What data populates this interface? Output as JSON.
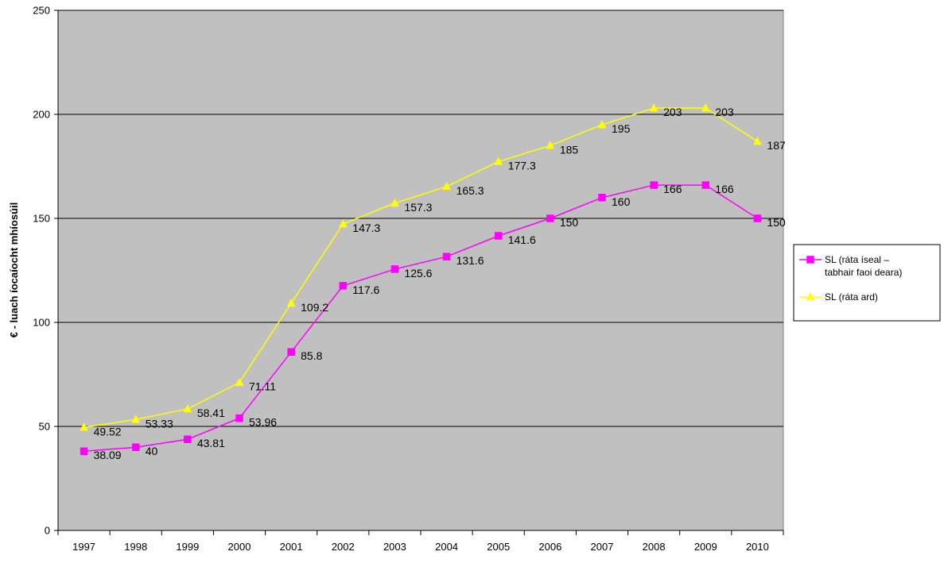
{
  "chart_data": {
    "type": "line",
    "title": "",
    "xlabel": "",
    "ylabel": "€ - luach íocaíocht mhíosúil",
    "categories": [
      "1997",
      "1998",
      "1999",
      "2000",
      "2001",
      "2002",
      "2003",
      "2004",
      "2005",
      "2006",
      "2007",
      "2008",
      "2009",
      "2010"
    ],
    "ylim": [
      0,
      250
    ],
    "yticks": [
      0,
      50,
      100,
      150,
      200,
      250
    ],
    "grid": true,
    "plot_background": "#C0C0C0",
    "legend_position": "right",
    "series": [
      {
        "name_lines": [
          "SL (ráta íseal –",
          "tabhair faoi deara)"
        ],
        "color": "#FF00FF",
        "marker": "square",
        "values": [
          38.09,
          40,
          43.81,
          53.96,
          85.8,
          117.6,
          125.6,
          131.6,
          141.6,
          150,
          160,
          166,
          166,
          150
        ]
      },
      {
        "name_lines": [
          "SL (ráta ard)"
        ],
        "color": "#FFFF00",
        "marker": "triangle",
        "values": [
          49.52,
          53.33,
          58.41,
          71.11,
          109.2,
          147.3,
          157.3,
          165.3,
          177.3,
          185,
          195,
          203,
          203,
          187
        ]
      }
    ]
  }
}
